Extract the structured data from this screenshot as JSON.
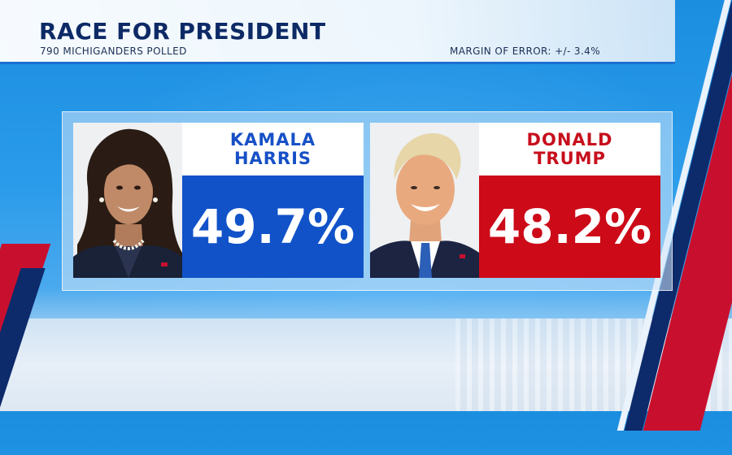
{
  "header": {
    "title": "RACE FOR PRESIDENT",
    "subtitle": "790 MICHIGANDERS POLLED",
    "margin_of_error": "MARGIN OF ERROR: +/- 3.4%"
  },
  "candidates": [
    {
      "first_name": "KAMALA",
      "last_name": "HARRIS",
      "percent": "49.7%",
      "color": "#1152c8"
    },
    {
      "first_name": "DONALD",
      "last_name": "TRUMP",
      "percent": "48.2%",
      "color": "#cc0a18"
    }
  ],
  "colors": {
    "title": "#0e2a66",
    "background_blue": "#1c8ee0",
    "accent_red": "#c8102e",
    "accent_navy": "#0d2a6b"
  }
}
